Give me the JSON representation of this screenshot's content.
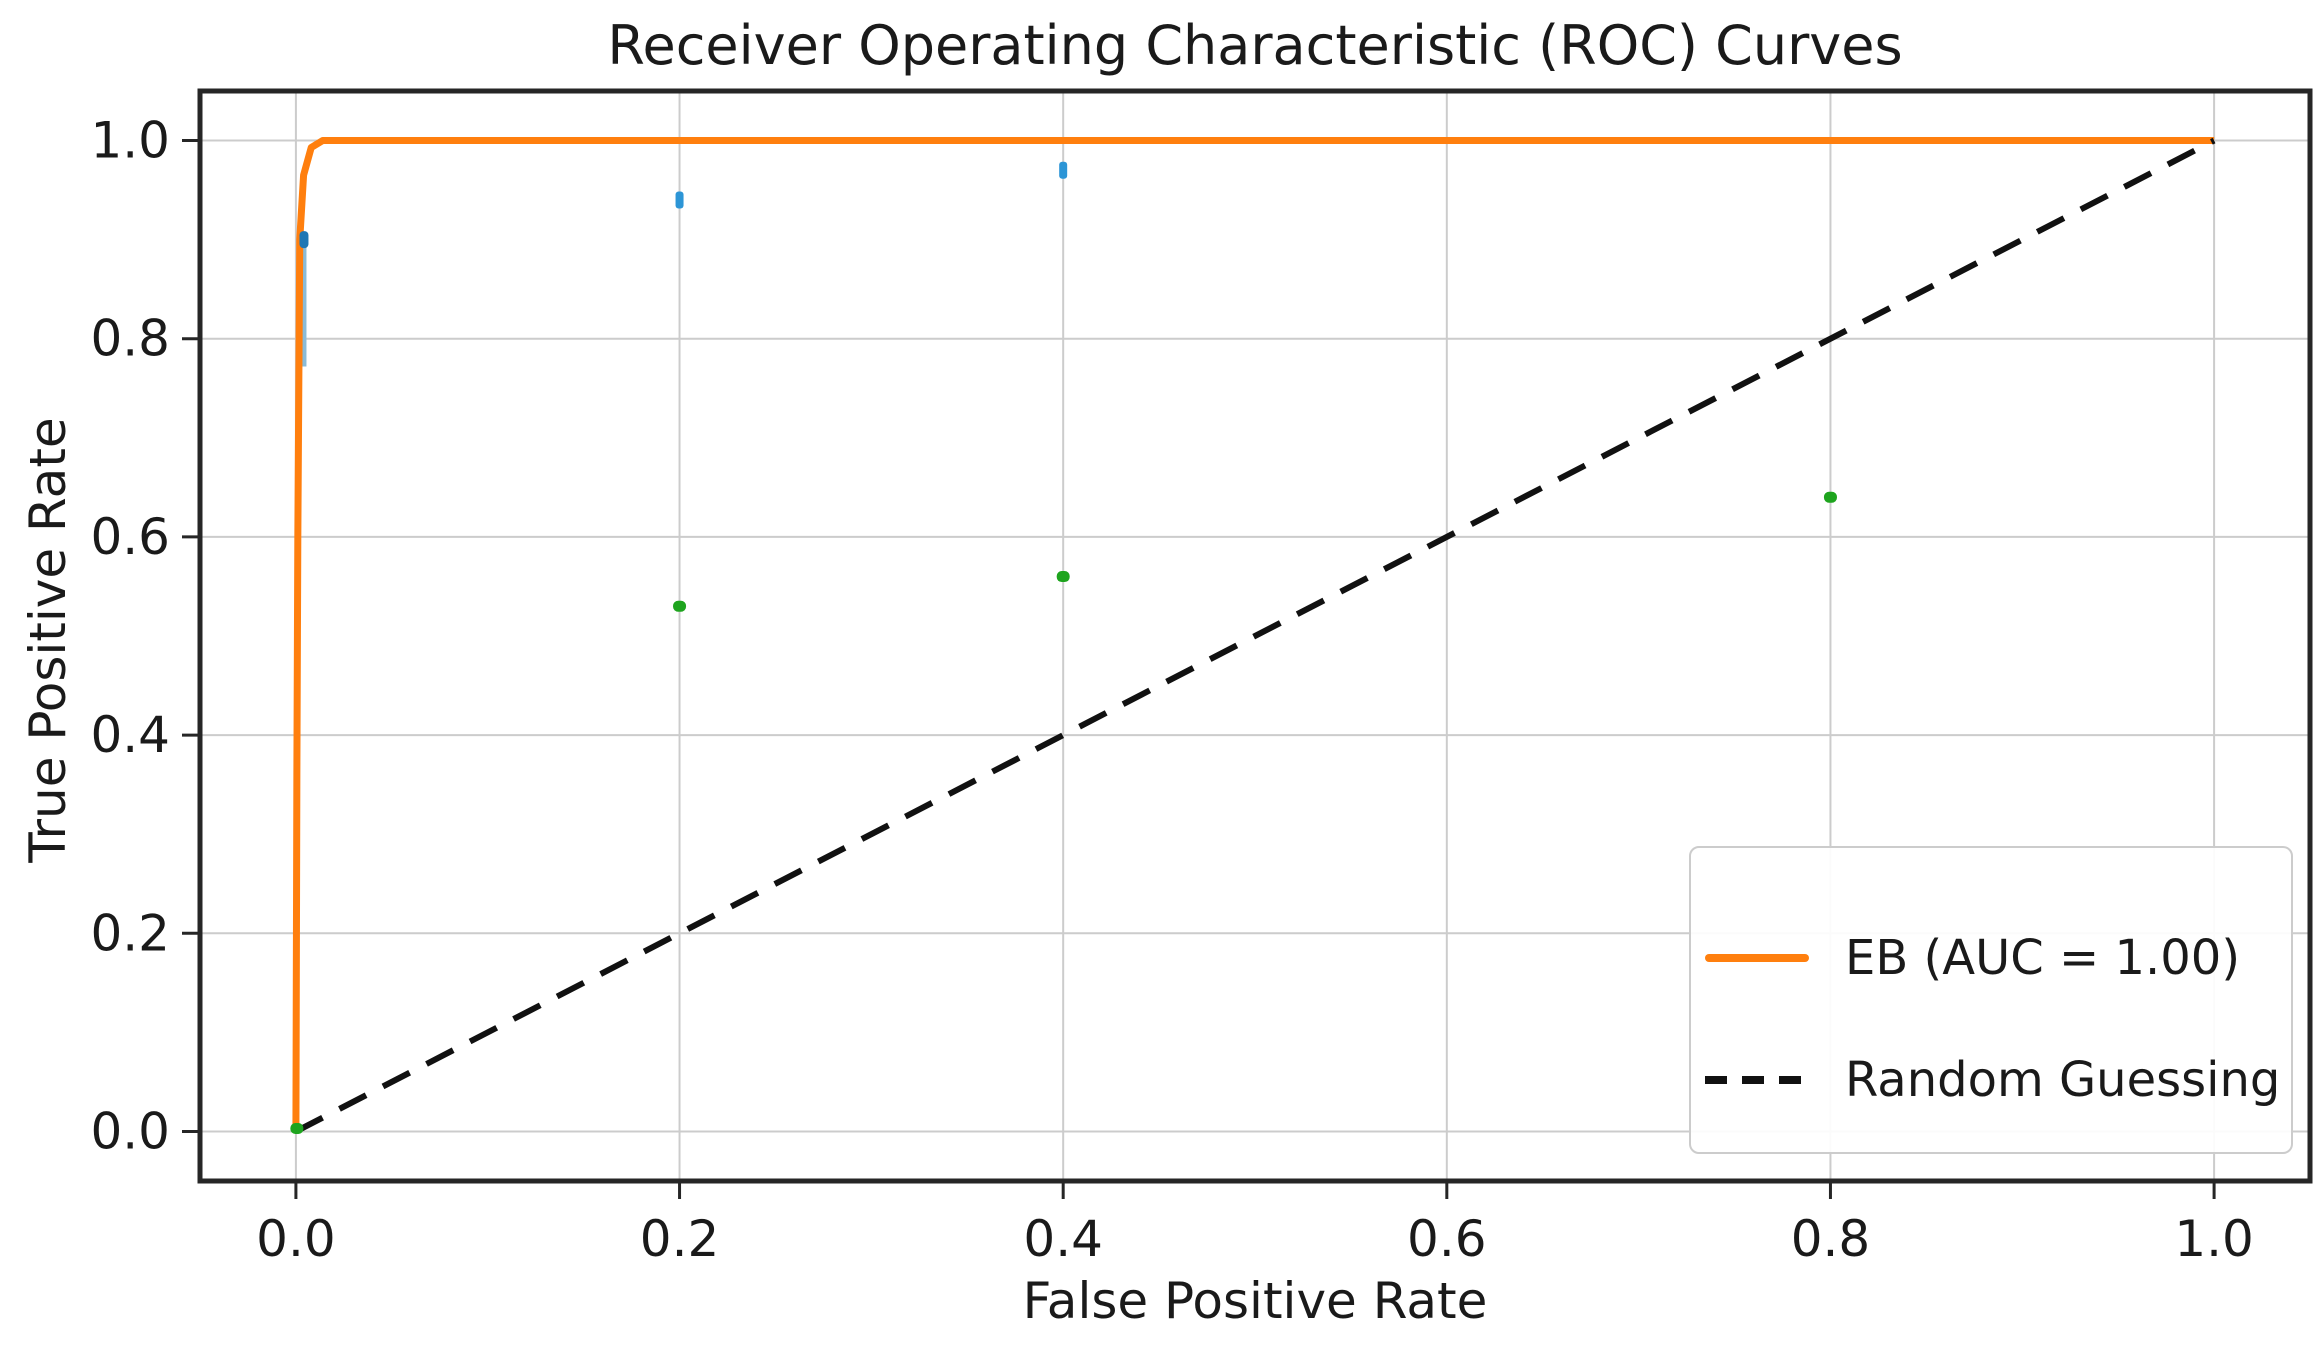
{
  "chart_data": {
    "type": "line",
    "title": "Receiver Operating Characteristic (ROC) Curves",
    "xlabel": "False Positive Rate",
    "ylabel": "True Positive Rate",
    "xlim": [
      -0.05,
      1.05
    ],
    "ylim": [
      -0.05,
      1.05
    ],
    "xticks": [
      0.0,
      0.2,
      0.4,
      0.6,
      0.8,
      1.0
    ],
    "yticks": [
      0.0,
      0.2,
      0.4,
      0.6,
      0.8,
      1.0
    ],
    "xtick_labels": [
      "0.0",
      "0.2",
      "0.4",
      "0.6",
      "0.8",
      "1.0"
    ],
    "ytick_labels": [
      "0.0",
      "0.2",
      "0.4",
      "0.6",
      "0.8",
      "1.0"
    ],
    "grid": true,
    "grid_color": "#cccccc",
    "spine_color": "#262626",
    "legend_position": "lower right",
    "series": [
      {
        "name": "hidden-curve-sliver",
        "kind": "line",
        "color": "#8abbd7",
        "width": 5,
        "dash": null,
        "points": [
          [
            0.0042,
            0.772
          ],
          [
            0.0042,
            0.905
          ]
        ]
      },
      {
        "name": "EB (AUC = 1.00)",
        "kind": "line",
        "color": "#ff7f0e",
        "width": 7,
        "dash": null,
        "points": [
          [
            0.0,
            0.0
          ],
          [
            0.0005,
            0.36
          ],
          [
            0.001,
            0.6
          ],
          [
            0.002,
            0.9
          ],
          [
            0.004,
            0.965
          ],
          [
            0.008,
            0.993
          ],
          [
            0.014,
            1.0
          ],
          [
            1.0,
            1.0
          ]
        ]
      },
      {
        "name": "Random Guessing",
        "kind": "line",
        "color": "#111111",
        "width": 6,
        "dash": [
          30,
          19
        ],
        "points": [
          [
            0.0,
            0.0
          ],
          [
            1.0,
            1.0
          ]
        ]
      },
      {
        "name": "blue-dot-marker",
        "kind": "scatter",
        "color": "#1f77b4",
        "marker": {
          "w": 9,
          "h": 17,
          "rx": 4
        },
        "points": [
          [
            0.0042,
            0.9
          ]
        ]
      },
      {
        "name": "blue-dash-markers",
        "kind": "scatter",
        "color": "#2c95d6",
        "marker": {
          "w": 8,
          "h": 17,
          "rx": 3
        },
        "points": [
          [
            0.2,
            0.94
          ],
          [
            0.4,
            0.97
          ]
        ]
      },
      {
        "name": "green-dot-markers",
        "kind": "scatter",
        "color": "#1ea41e",
        "marker": {
          "w": 13,
          "h": 11,
          "rx": 5
        },
        "points": [
          [
            0.0005,
            0.003
          ],
          [
            0.2,
            0.53
          ],
          [
            0.4,
            0.56
          ],
          [
            0.8,
            0.64
          ]
        ]
      }
    ],
    "legend": [
      {
        "label": "EB (AUC = 1.00)",
        "color": "#ff7f0e",
        "style": "solid"
      },
      {
        "label": "Random Guessing",
        "color": "#111111",
        "style": "dashed"
      }
    ]
  }
}
